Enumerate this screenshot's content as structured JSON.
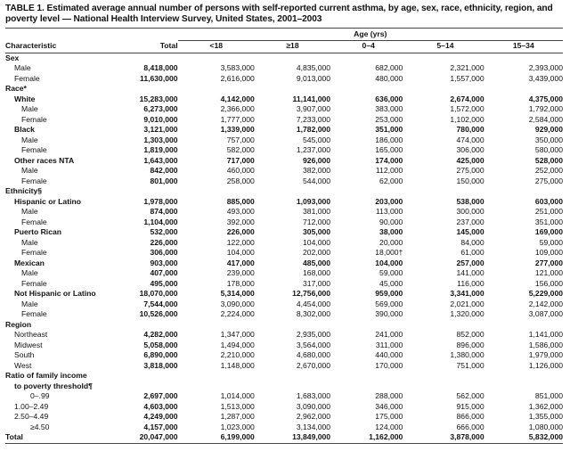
{
  "title": "TABLE 1. Estimated average annual number of persons with self-reported current asthma, by age, sex, race, ethnicity, region, and poverty level — National Health Interview Survey, United States, 2001–2003",
  "header": {
    "characteristic": "Characteristic",
    "total": "Total",
    "age_group": "Age (yrs)",
    "ages": [
      "<18",
      "≥18",
      "0–4",
      "5–14",
      "15–34"
    ]
  },
  "rows": [
    {
      "label": "Sex",
      "indent": 0,
      "section": true
    },
    {
      "label": "Male",
      "indent": 1,
      "values": [
        "8,418,000",
        "3,583,000",
        "4,835,000",
        "682,000",
        "2,321,000",
        "2,393,000"
      ]
    },
    {
      "label": "Female",
      "indent": 1,
      "values": [
        "11,630,000",
        "2,616,000",
        "9,013,000",
        "480,000",
        "1,557,000",
        "3,439,000"
      ]
    },
    {
      "label": "Race*",
      "indent": 0,
      "section": true
    },
    {
      "label": "White",
      "indent": 1,
      "bold": true,
      "values": [
        "15,283,000",
        "4,142,000",
        "11,141,000",
        "636,000",
        "2,674,000",
        "4,375,000"
      ]
    },
    {
      "label": "Male",
      "indent": 2,
      "values": [
        "6,273,000",
        "2,366,000",
        "3,907,000",
        "383,000",
        "1,572,000",
        "1,792,000"
      ]
    },
    {
      "label": "Female",
      "indent": 2,
      "values": [
        "9,010,000",
        "1,777,000",
        "7,233,000",
        "253,000",
        "1,102,000",
        "2,584,000"
      ]
    },
    {
      "label": "Black",
      "indent": 1,
      "bold": true,
      "values": [
        "3,121,000",
        "1,339,000",
        "1,782,000",
        "351,000",
        "780,000",
        "929,000"
      ]
    },
    {
      "label": "Male",
      "indent": 2,
      "values": [
        "1,303,000",
        "757,000",
        "545,000",
        "186,000",
        "474,000",
        "350,000"
      ]
    },
    {
      "label": "Female",
      "indent": 2,
      "values": [
        "1,819,000",
        "582,000",
        "1,237,000",
        "165,000",
        "306,000",
        "580,000"
      ]
    },
    {
      "label": "Other races NTA",
      "indent": 1,
      "bold": true,
      "values": [
        "1,643,000",
        "717,000",
        "926,000",
        "174,000",
        "425,000",
        "528,000"
      ]
    },
    {
      "label": "Male",
      "indent": 2,
      "values": [
        "842,000",
        "460,000",
        "382,000",
        "112,000",
        "275,000",
        "252,000"
      ]
    },
    {
      "label": "Female",
      "indent": 2,
      "values": [
        "801,000",
        "258,000",
        "544,000",
        "62,000",
        "150,000",
        "275,000"
      ]
    },
    {
      "label": "Ethnicity§",
      "indent": 0,
      "section": true
    },
    {
      "label": "Hispanic or Latino",
      "indent": 1,
      "bold": true,
      "values": [
        "1,978,000",
        "885,000",
        "1,093,000",
        "203,000",
        "538,000",
        "603,000"
      ]
    },
    {
      "label": "Male",
      "indent": 2,
      "values": [
        "874,000",
        "493,000",
        "381,000",
        "113,000",
        "300,000",
        "251,000"
      ]
    },
    {
      "label": "Female",
      "indent": 2,
      "values": [
        "1,104,000",
        "392,000",
        "712,000",
        "90,000",
        "237,000",
        "351,000"
      ]
    },
    {
      "label": "Puerto Rican",
      "indent": 1,
      "bold": true,
      "values": [
        "532,000",
        "226,000",
        "305,000",
        "38,000",
        "145,000",
        "169,000"
      ]
    },
    {
      "label": "Male",
      "indent": 2,
      "values": [
        "226,000",
        "122,000",
        "104,000",
        "20,000",
        "84,000",
        "59,000"
      ]
    },
    {
      "label": "Female",
      "indent": 2,
      "values": [
        "306,000",
        "104,000",
        "202,000",
        "18,000†",
        "61,000",
        "109,000"
      ]
    },
    {
      "label": "Mexican",
      "indent": 1,
      "bold": true,
      "values": [
        "903,000",
        "417,000",
        "485,000",
        "104,000",
        "257,000",
        "277,000"
      ]
    },
    {
      "label": "Male",
      "indent": 2,
      "values": [
        "407,000",
        "239,000",
        "168,000",
        "59,000",
        "141,000",
        "121,000"
      ]
    },
    {
      "label": "Female",
      "indent": 2,
      "values": [
        "495,000",
        "178,000",
        "317,000",
        "45,000",
        "116,000",
        "156,000"
      ]
    },
    {
      "label": "Not Hispanic or Latino",
      "indent": 1,
      "bold": true,
      "values": [
        "18,070,000",
        "5,314,000",
        "12,756,000",
        "959,000",
        "3,341,000",
        "5,229,000"
      ]
    },
    {
      "label": "Male",
      "indent": 2,
      "values": [
        "7,544,000",
        "3,090,000",
        "4,454,000",
        "569,000",
        "2,021,000",
        "2,142,000"
      ]
    },
    {
      "label": "Female",
      "indent": 2,
      "values": [
        "10,526,000",
        "2,224,000",
        "8,302,000",
        "390,000",
        "1,320,000",
        "3,087,000"
      ]
    },
    {
      "label": "Region",
      "indent": 0,
      "section": true
    },
    {
      "label": "Northeast",
      "indent": 1,
      "values": [
        "4,282,000",
        "1,347,000",
        "2,935,000",
        "241,000",
        "852,000",
        "1,141,000"
      ]
    },
    {
      "label": "Midwest",
      "indent": 1,
      "values": [
        "5,058,000",
        "1,494,000",
        "3,564,000",
        "311,000",
        "896,000",
        "1,586,000"
      ]
    },
    {
      "label": "South",
      "indent": 1,
      "values": [
        "6,890,000",
        "2,210,000",
        "4,680,000",
        "440,000",
        "1,380,000",
        "1,979,000"
      ]
    },
    {
      "label": "West",
      "indent": 1,
      "values": [
        "3,818,000",
        "1,148,000",
        "2,670,000",
        "170,000",
        "751,000",
        "1,126,000"
      ]
    },
    {
      "label": "Ratio of family income",
      "indent": 0,
      "section": true
    },
    {
      "label": "to poverty threshold¶",
      "indent": 1,
      "section": true
    },
    {
      "label": "0–.99",
      "indent": 3,
      "values": [
        "2,697,000",
        "1,014,000",
        "1,683,000",
        "288,000",
        "562,000",
        "851,000"
      ]
    },
    {
      "label": "1.00–2.49",
      "indent": 1,
      "values": [
        "4,603,000",
        "1,513,000",
        "3,090,000",
        "346,000",
        "915,000",
        "1,362,000"
      ]
    },
    {
      "label": "2.50–4.49",
      "indent": 1,
      "values": [
        "4,249,000",
        "1,287,000",
        "2,962,000",
        "175,000",
        "866,000",
        "1,355,000"
      ]
    },
    {
      "label": "≥4.50",
      "indent": 3,
      "values": [
        "4,157,000",
        "1,023,000",
        "3,134,000",
        "124,000",
        "666,000",
        "1,080,000"
      ]
    },
    {
      "label": "Total",
      "indent": 0,
      "bold": true,
      "total": true,
      "values": [
        "20,047,000",
        "6,199,000",
        "13,849,000",
        "1,162,000",
        "3,878,000",
        "5,832,000"
      ]
    }
  ]
}
